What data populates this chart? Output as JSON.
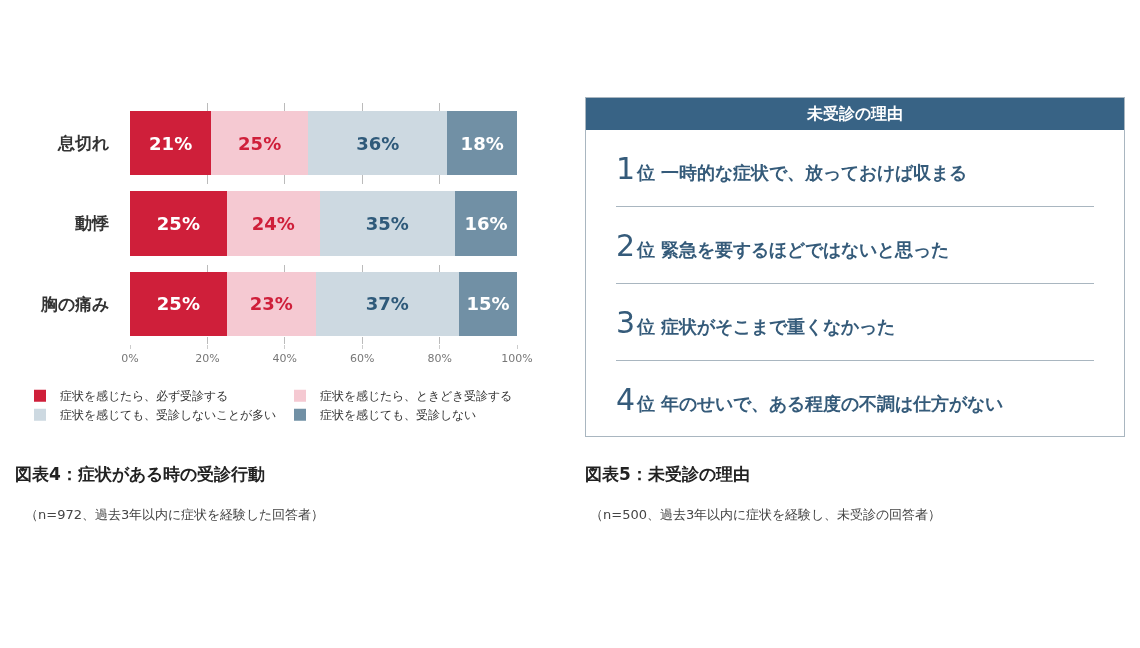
{
  "chart_data": [
    {
      "type": "bar",
      "orientation": "horizontal",
      "stacked": true,
      "title": "図表4：症状がある時の受診行動",
      "subtitle": "（n=972、過去3年以内に症状を経験した回答者）",
      "categories": [
        "息切れ",
        "動悸",
        "胸の痛み"
      ],
      "series": [
        {
          "name": "症状を感じたら、必ず受診する",
          "color": "#cf1f3a",
          "values": [
            21,
            25,
            25
          ],
          "value_labels": [
            "21%",
            "25%",
            "25%"
          ]
        },
        {
          "name": "症状を感じたら、ときどき受診する",
          "color": "#f5c9d2",
          "values": [
            25,
            24,
            23
          ],
          "value_labels": [
            "25%",
            "24%",
            "23%"
          ]
        },
        {
          "name": "症状を感じても、受診しないことが多い",
          "color": "#cdd9e1",
          "values": [
            36,
            35,
            37
          ],
          "value_labels": [
            "36%",
            "35%",
            "37%"
          ]
        },
        {
          "name": "症状を感じても、受診しない",
          "color": "#7190a5",
          "values": [
            18,
            16,
            15
          ],
          "value_labels": [
            "18%",
            "16%",
            "15%"
          ]
        }
      ],
      "xlim": [
        0,
        100
      ],
      "xticks": [
        {
          "value": 0,
          "label": "0%"
        },
        {
          "value": 20,
          "label": "20%"
        },
        {
          "value": 40,
          "label": "40%"
        },
        {
          "value": 60,
          "label": "60%"
        },
        {
          "value": 80,
          "label": "80%"
        },
        {
          "value": 100,
          "label": "100%"
        }
      ],
      "grid": "x",
      "legend": "bottom"
    },
    {
      "type": "other",
      "title": "図表5：未受診の理由",
      "subtitle": "（n=500、過去3年以内に症状を経験し、未受診の回答者）",
      "annotations": [
        "未受診の理由",
        "1位 一時的な症状で、放っておけば収まる",
        "2位 緊急を要するほどではないと思った",
        "3位 症状がそこまで重くなかった",
        "4位 年のせいで、ある程度の不調は仕方がない"
      ]
    }
  ]
}
